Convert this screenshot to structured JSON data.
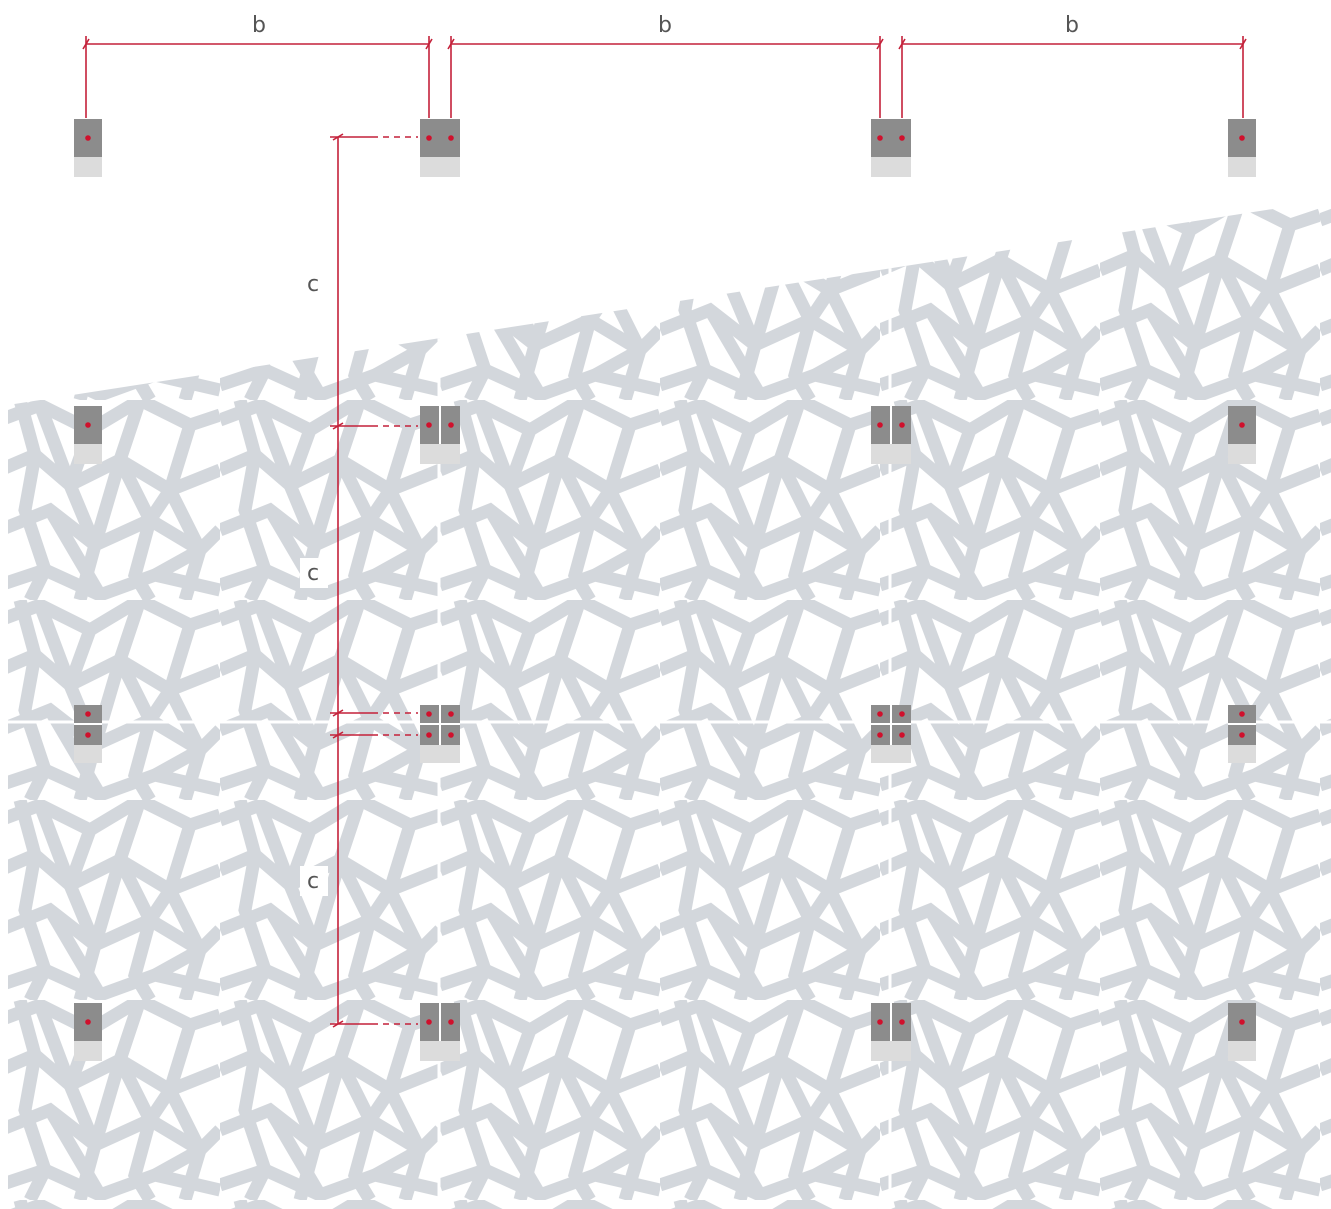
{
  "labels": {
    "spacing_b": "b",
    "spacing_c": "c"
  },
  "colors": {
    "dimension_line": "#c4213a",
    "panel_pattern": "#d3d7dc",
    "bracket_dark": "#8c8c8c",
    "bracket_light": "#dcdcdc",
    "fixing_point": "#d0102c"
  }
}
